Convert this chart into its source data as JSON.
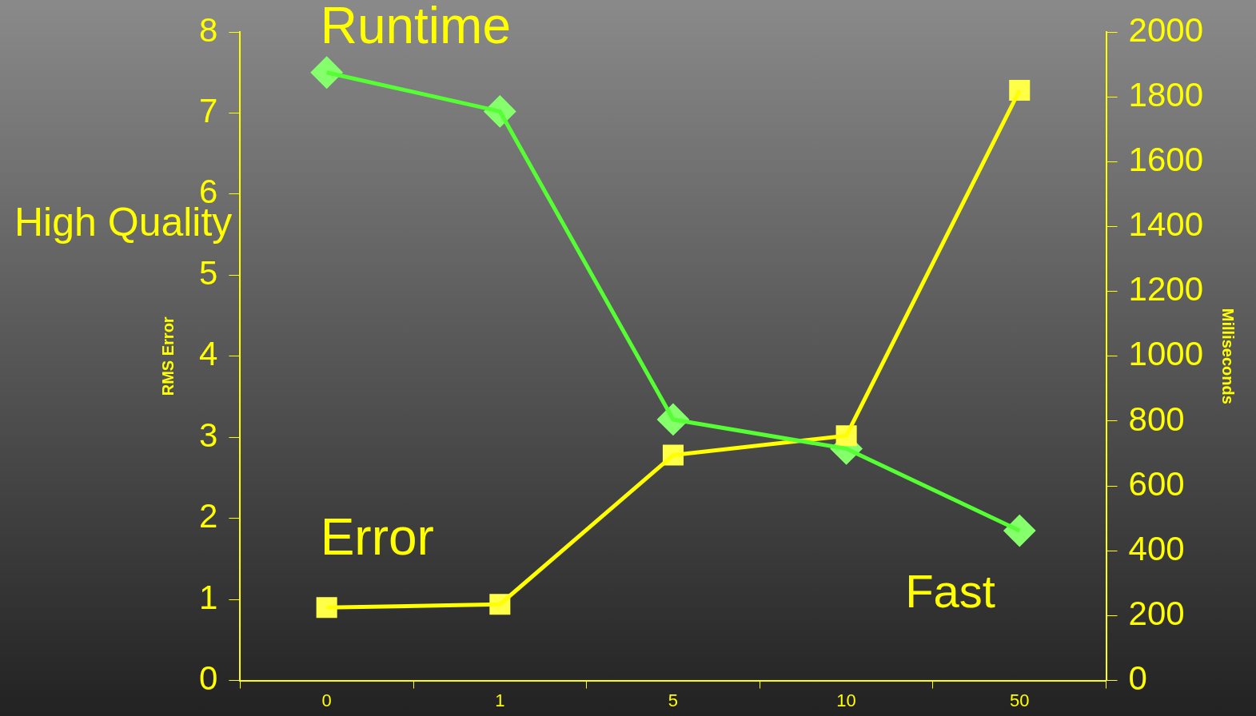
{
  "chart_data": {
    "type": "line",
    "categories": [
      "0",
      "1",
      "5",
      "10",
      "50"
    ],
    "ylabel": "RMS Error",
    "y2label": "Milliseconds",
    "ylim": [
      0,
      8
    ],
    "yticks": [
      0,
      1,
      2,
      3,
      4,
      5,
      6,
      7,
      8
    ],
    "y2lim": [
      0,
      2000
    ],
    "y2ticks": [
      0,
      200,
      400,
      600,
      800,
      1000,
      1200,
      1400,
      1600,
      1800,
      2000
    ],
    "series": [
      {
        "name": "Runtime",
        "color": "#55ff33",
        "axis": "y2",
        "marker": "diamond",
        "values": [
          1875,
          1755,
          805,
          715,
          462
        ]
      },
      {
        "name": "Error",
        "color": "#ffff00",
        "axis": "y",
        "marker": "square",
        "values": [
          0.9,
          0.94,
          2.78,
          3.02,
          7.28
        ]
      }
    ],
    "annotations": [
      "High Quality",
      "Fast"
    ],
    "grid": false,
    "legend": false,
    "line_style": "solid"
  }
}
